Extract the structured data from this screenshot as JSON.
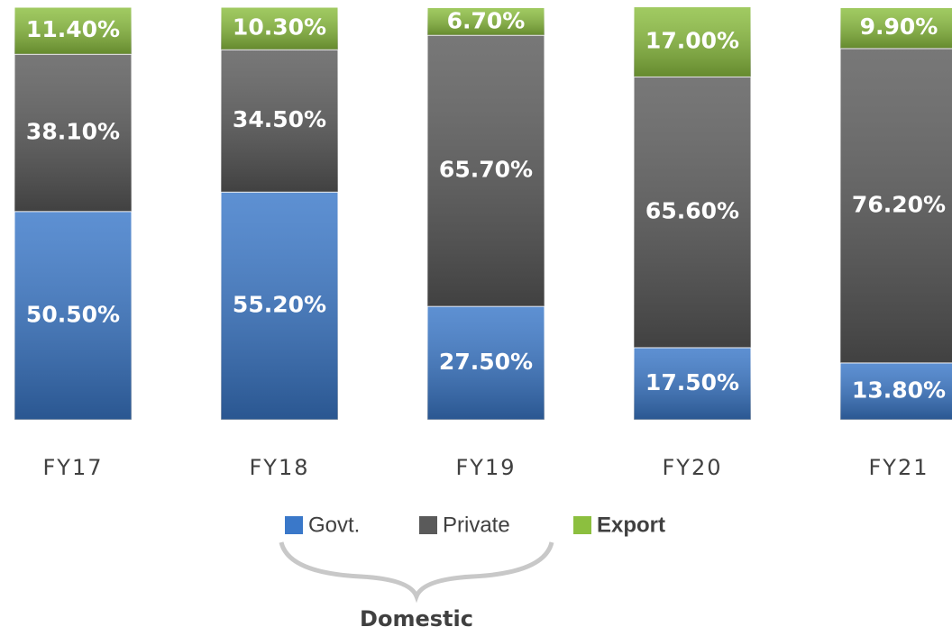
{
  "chart_data": {
    "type": "bar",
    "stacked": true,
    "categories": [
      "FY17",
      "FY18",
      "FY19",
      "FY20",
      "FY21"
    ],
    "series": [
      {
        "name": "Govt.",
        "color": "#3a78c9",
        "values": [
          50.5,
          55.2,
          27.5,
          17.5,
          13.8
        ],
        "value_labels": [
          "50.50%",
          "55.20%",
          "27.50%",
          "17.50%",
          "13.80%"
        ]
      },
      {
        "name": "Private",
        "color": "#5a5a5a",
        "values": [
          38.1,
          34.5,
          65.7,
          65.6,
          76.2
        ],
        "value_labels": [
          "38.10%",
          "34.50%",
          "65.70%",
          "65.60%",
          "76.20%"
        ]
      },
      {
        "name": "Export",
        "color": "#8cbf3f",
        "values": [
          11.4,
          10.3,
          6.7,
          17.0,
          9.9
        ],
        "value_labels": [
          "11.40%",
          "10.30%",
          "6.70%",
          "17.00%",
          "9.90%"
        ]
      }
    ],
    "ylim": [
      0,
      100
    ],
    "annotations": [
      "Domestic"
    ]
  }
}
